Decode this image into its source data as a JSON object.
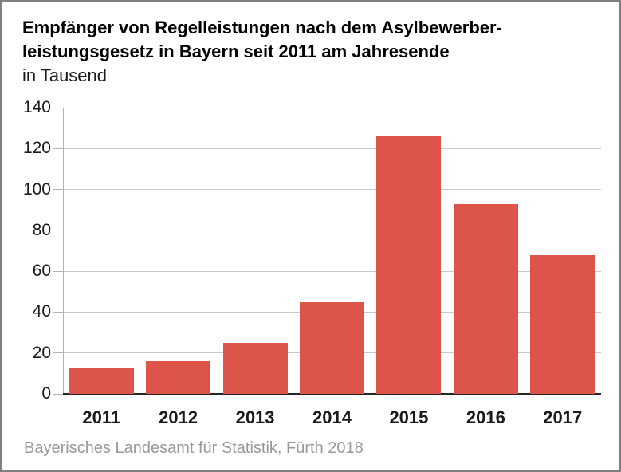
{
  "title": {
    "line1": "Empfänger von Regelleistungen nach dem Asylbewerber-",
    "line2": "leistungsgesetz in Bayern seit 2011 am Jahresende",
    "subtitle": "in Tausend"
  },
  "source": "Bayerisches Landesamt für Statistik, Fürth 2018",
  "chart_data": {
    "type": "bar",
    "title": "Empfänger von Regelleistungen nach dem Asylbewerberleistungsgesetz in Bayern seit 2011 am Jahresende",
    "subtitle": "in Tausend",
    "categories": [
      "2011",
      "2012",
      "2013",
      "2014",
      "2015",
      "2016",
      "2017"
    ],
    "values": [
      13,
      16,
      25,
      45,
      126,
      93,
      68
    ],
    "xlabel": "",
    "ylabel": "in Tausend",
    "ylim": [
      0,
      140
    ],
    "yticks": [
      0,
      20,
      40,
      60,
      80,
      100,
      120,
      140
    ],
    "grid": true,
    "legend": false,
    "bar_color": "#dd544a"
  },
  "colors": {
    "bar": "#dd544a",
    "gridline": "#c9c9c9",
    "axis_line": "#b3b3b3",
    "zero_line": "#262626",
    "text": "#1a1a1a",
    "source_text": "#999999",
    "frame_border": "#7f7f7f",
    "background": "#ffffff"
  }
}
